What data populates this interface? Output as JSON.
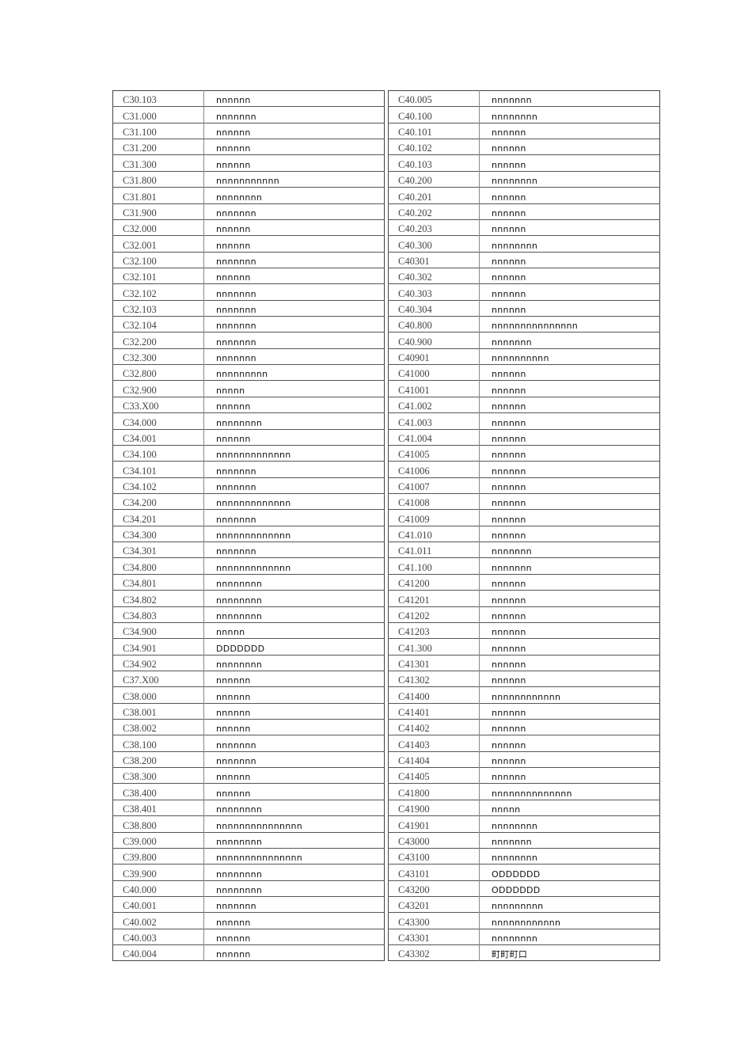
{
  "left_table": {
    "rows": [
      {
        "code": "C30.103",
        "desc": "nnnnnn"
      },
      {
        "code": "C31.000",
        "desc": "nnnnnnn"
      },
      {
        "code": "C31.100",
        "desc": "nnnnnn"
      },
      {
        "code": "C31.200",
        "desc": "nnnnnn"
      },
      {
        "code": "C31.300",
        "desc": "nnnnnn"
      },
      {
        "code": "C31.800",
        "desc": "nnnnnnnnnnn"
      },
      {
        "code": "C31.801",
        "desc": "nnnnnnnn"
      },
      {
        "code": "C31.900",
        "desc": "nnnnnnn"
      },
      {
        "code": "C32.000",
        "desc": "nnnnnn"
      },
      {
        "code": "C32.001",
        "desc": "nnnnnn"
      },
      {
        "code": "C32.100",
        "desc": "nnnnnnn"
      },
      {
        "code": "C32.101",
        "desc": "nnnnnn"
      },
      {
        "code": "C32.102",
        "desc": "nnnnnnn"
      },
      {
        "code": "C32.103",
        "desc": "nnnnnnn"
      },
      {
        "code": "C32.104",
        "desc": "nnnnnnn"
      },
      {
        "code": "C32.200",
        "desc": "nnnnnnn"
      },
      {
        "code": "C32.300",
        "desc": "nnnnnnn"
      },
      {
        "code": "C32.800",
        "desc": "nnnnnnnnn"
      },
      {
        "code": "C32.900",
        "desc": "nnnnn"
      },
      {
        "code": "C33.X00",
        "desc": "nnnnnn"
      },
      {
        "code": "C34.000",
        "desc": "nnnnnnnn"
      },
      {
        "code": "C34.001",
        "desc": "nnnnnn"
      },
      {
        "code": "C34.100",
        "desc": "nnnnnnnnnnnnn"
      },
      {
        "code": "C34.101",
        "desc": "nnnnnnn"
      },
      {
        "code": "C34.102",
        "desc": "nnnnnnn"
      },
      {
        "code": "C34.200",
        "desc": "nnnnnnnnnnnnn"
      },
      {
        "code": "C34.201",
        "desc": "nnnnnnn"
      },
      {
        "code": "C34.300",
        "desc": "nnnnnnnnnnnnn"
      },
      {
        "code": "C34.301",
        "desc": "nnnnnnn"
      },
      {
        "code": "C34.800",
        "desc": "nnnnnnnnnnnnn"
      },
      {
        "code": "C34.801",
        "desc": "nnnnnnnn"
      },
      {
        "code": "C34.802",
        "desc": "nnnnnnnn"
      },
      {
        "code": "C34.803",
        "desc": "nnnnnnnn"
      },
      {
        "code": "C34.900",
        "desc": "nnnnn"
      },
      {
        "code": "C34.901",
        "desc": "DDDDDDD"
      },
      {
        "code": "C34.902",
        "desc": "nnnnnnnn"
      },
      {
        "code": "C37.X00",
        "desc": "nnnnnn"
      },
      {
        "code": "C38.000",
        "desc": "nnnnnn"
      },
      {
        "code": "C38.001",
        "desc": "nnnnnn"
      },
      {
        "code": "C38.002",
        "desc": "nnnnnn"
      },
      {
        "code": "C38.100",
        "desc": "nnnnnnn"
      },
      {
        "code": "C38.200",
        "desc": "nnnnnnn"
      },
      {
        "code": "C38.300",
        "desc": "nnnnnn"
      },
      {
        "code": "C38.400",
        "desc": "nnnnnn"
      },
      {
        "code": "C38.401",
        "desc": "nnnnnnnn"
      },
      {
        "code": "C38.800",
        "desc": "nnnnnnnnnnnnnnn"
      },
      {
        "code": "C39.000",
        "desc": "nnnnnnnn"
      },
      {
        "code": "C39.800",
        "desc": "nnnnnnnnnnnnnnn"
      },
      {
        "code": "C39.900",
        "desc": "nnnnnnnn"
      },
      {
        "code": "C40.000",
        "desc": "nnnnnnnn"
      },
      {
        "code": "C40.001",
        "desc": "nnnnnnn"
      },
      {
        "code": "C40.002",
        "desc": "nnnnnn"
      },
      {
        "code": "C40.003",
        "desc": "nnnnnn"
      },
      {
        "code": "C40.004",
        "desc": "nnnnnn"
      }
    ]
  },
  "right_table": {
    "rows": [
      {
        "code": "C40.005",
        "desc": "nnnnnnn"
      },
      {
        "code": "C40.100",
        "desc": "nnnnnnnn"
      },
      {
        "code": "C40.101",
        "desc": "nnnnnn"
      },
      {
        "code": "C40.102",
        "desc": "nnnnnn"
      },
      {
        "code": "C40.103",
        "desc": "nnnnnn"
      },
      {
        "code": "C40.200",
        "desc": "nnnnnnnn"
      },
      {
        "code": "C40.201",
        "desc": "nnnnnn"
      },
      {
        "code": "C40.202",
        "desc": "nnnnnn"
      },
      {
        "code": "C40.203",
        "desc": "nnnnnn"
      },
      {
        "code": "C40.300",
        "desc": "nnnnnnnn"
      },
      {
        "code": "C40301",
        "desc": "nnnnnn"
      },
      {
        "code": "C40.302",
        "desc": "nnnnnn"
      },
      {
        "code": "C40.303",
        "desc": "nnnnnn"
      },
      {
        "code": "C40.304",
        "desc": "nnnnnn"
      },
      {
        "code": "C40.800",
        "desc": "nnnnnnnnnnnnnnn"
      },
      {
        "code": "C40.900",
        "desc": "nnnnnnn"
      },
      {
        "code": "C40901",
        "desc": "nnnnnnnnnn"
      },
      {
        "code": "C41000",
        "desc": "nnnnnn"
      },
      {
        "code": "C41001",
        "desc": "nnnnnn"
      },
      {
        "code": "C41.002",
        "desc": "nnnnnn"
      },
      {
        "code": "C41.003",
        "desc": "nnnnnn"
      },
      {
        "code": "C41.004",
        "desc": "nnnnnn"
      },
      {
        "code": "C41005",
        "desc": "nnnnnn"
      },
      {
        "code": "C41006",
        "desc": "nnnnnn"
      },
      {
        "code": "C41007",
        "desc": "nnnnnn"
      },
      {
        "code": "C41008",
        "desc": "nnnnnn"
      },
      {
        "code": "C41009",
        "desc": "nnnnnn"
      },
      {
        "code": "C41.010",
        "desc": "nnnnnn"
      },
      {
        "code": "C41.011",
        "desc": "nnnnnnn"
      },
      {
        "code": "C41.100",
        "desc": "nnnnnnn"
      },
      {
        "code": "C41200",
        "desc": "nnnnnn"
      },
      {
        "code": "C41201",
        "desc": "nnnnnn"
      },
      {
        "code": "C41202",
        "desc": "nnnnnn"
      },
      {
        "code": "C41203",
        "desc": "nnnnnn"
      },
      {
        "code": "C41.300",
        "desc": "nnnnnn"
      },
      {
        "code": "C41301",
        "desc": "nnnnnn"
      },
      {
        "code": "C41302",
        "desc": "nnnnnn"
      },
      {
        "code": "C41400",
        "desc": "nnnnnnnnnnnn"
      },
      {
        "code": "C41401",
        "desc": "nnnnnn"
      },
      {
        "code": "C41402",
        "desc": "nnnnnn"
      },
      {
        "code": "C41403",
        "desc": "nnnnnn"
      },
      {
        "code": "C41404",
        "desc": "nnnnnn"
      },
      {
        "code": "C41405",
        "desc": "nnnnnn"
      },
      {
        "code": "C41800",
        "desc": "nnnnnnnnnnnnnn"
      },
      {
        "code": "C41900",
        "desc": "nnnnn"
      },
      {
        "code": "C41901",
        "desc": "nnnnnnnn"
      },
      {
        "code": "C43000",
        "desc": "nnnnnnn"
      },
      {
        "code": "C43100",
        "desc": "nnnnnnnn"
      },
      {
        "code": "C43101",
        "desc": "ODDDDDD"
      },
      {
        "code": "C43200",
        "desc": "ODDDDDD"
      },
      {
        "code": "C43201",
        "desc": "nnnnnnnnn"
      },
      {
        "code": "C43300",
        "desc": "nnnnnnnnnnnn"
      },
      {
        "code": "C43301",
        "desc": "nnnnnnnn"
      },
      {
        "code": "C43302",
        "desc": "町町町口"
      }
    ]
  }
}
